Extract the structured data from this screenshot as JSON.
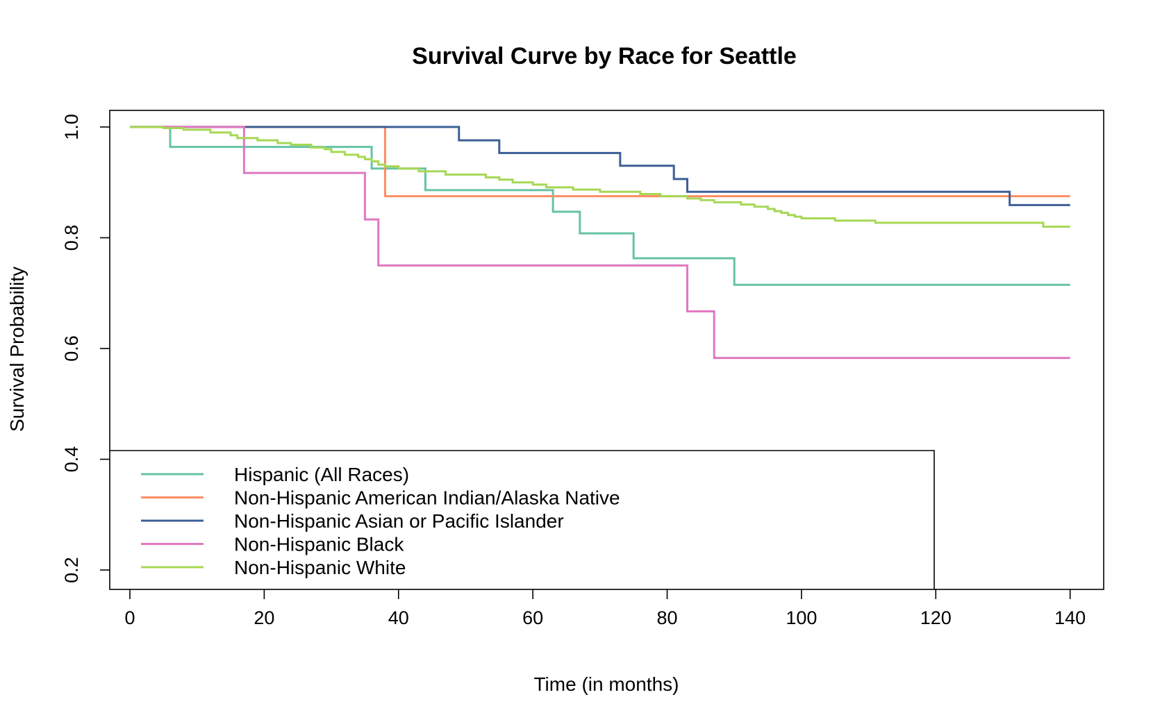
{
  "chart_data": {
    "type": "line",
    "step": true,
    "title": "Survival Curve by Race for Seattle",
    "xlabel": "Time (in months)",
    "ylabel": "Survival Probability",
    "xlim": [
      -3,
      145
    ],
    "ylim": [
      0.165,
      1.03
    ],
    "xticks": [
      "0",
      "20",
      "40",
      "60",
      "80",
      "100",
      "120",
      "140"
    ],
    "yticks": [
      "0.2",
      "0.4",
      "0.6",
      "0.8",
      "1.0"
    ],
    "grid": false,
    "legend_position": "bottom-left",
    "series": [
      {
        "name": "Hispanic (All Races)",
        "color": "#66c2a5",
        "x": [
          0,
          6,
          36,
          44,
          63,
          67,
          75,
          90,
          140
        ],
        "y": [
          1.0,
          0.964,
          0.925,
          0.886,
          0.847,
          0.808,
          0.763,
          0.715,
          0.715
        ]
      },
      {
        "name": "Non-Hispanic American Indian/Alaska Native",
        "color": "#fc8d62",
        "x": [
          0,
          38,
          140
        ],
        "y": [
          1.0,
          0.875,
          0.875
        ]
      },
      {
        "name": "Non-Hispanic Asian or Pacific Islander",
        "color": "#3c5f96",
        "x": [
          0,
          49,
          55,
          73,
          81,
          83,
          131,
          140
        ],
        "y": [
          1.0,
          0.976,
          0.953,
          0.93,
          0.906,
          0.883,
          0.859,
          0.859
        ]
      },
      {
        "name": "Non-Hispanic Black",
        "color": "#e078c0",
        "x": [
          0,
          17,
          35,
          37,
          83,
          87,
          140
        ],
        "y": [
          1.0,
          0.917,
          0.833,
          0.75,
          0.667,
          0.583,
          0.583
        ]
      },
      {
        "name": "Non-Hispanic White",
        "color": "#a6d854",
        "x": [
          0,
          5,
          8,
          12,
          15,
          16,
          19,
          22,
          24,
          27,
          29,
          30,
          32,
          34,
          35,
          36,
          37,
          38,
          40,
          43,
          47,
          53,
          55,
          57,
          60,
          62,
          66,
          70,
          76,
          79,
          83,
          85,
          87,
          91,
          93,
          95,
          96,
          97,
          98,
          99,
          100,
          105,
          111,
          136,
          140
        ],
        "y": [
          1.0,
          0.998,
          0.995,
          0.99,
          0.985,
          0.98,
          0.976,
          0.971,
          0.968,
          0.963,
          0.96,
          0.955,
          0.95,
          0.946,
          0.942,
          0.938,
          0.932,
          0.929,
          0.925,
          0.92,
          0.914,
          0.909,
          0.905,
          0.9,
          0.896,
          0.891,
          0.887,
          0.883,
          0.879,
          0.875,
          0.871,
          0.868,
          0.864,
          0.86,
          0.856,
          0.852,
          0.848,
          0.845,
          0.841,
          0.838,
          0.835,
          0.831,
          0.827,
          0.82,
          0.82
        ]
      }
    ]
  }
}
